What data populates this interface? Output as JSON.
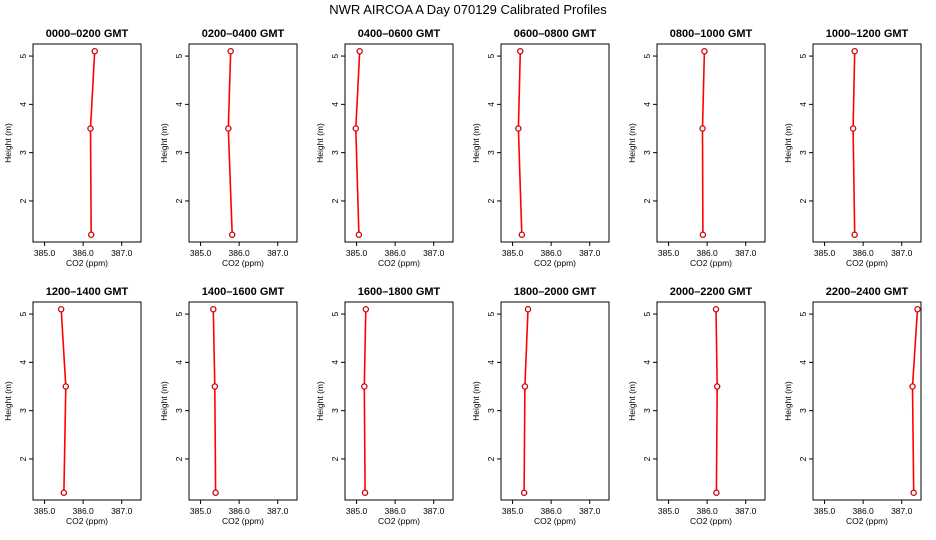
{
  "title": "NWR AIRCOA A  Day 070129  Calibrated Profiles",
  "colors": {
    "line": "#ff0000",
    "marker": "#cc0000",
    "axis": "#000000"
  },
  "chart_data": {
    "type": "line",
    "xlabel": "CO2 (ppm)",
    "ylabel": "Height (m)",
    "xlim": [
      384.7,
      387.5
    ],
    "ylim": [
      1.15,
      5.25
    ],
    "xticks": [
      385.0,
      386.0,
      387.0
    ],
    "xtick_labels": [
      "385.0",
      "386.0",
      "387.0"
    ],
    "yticks": [
      2,
      3,
      4,
      5
    ],
    "ytick_labels": [
      "2",
      "3",
      "4",
      "5"
    ],
    "heights": [
      1.3,
      3.5,
      5.1
    ],
    "panels": [
      {
        "title": "0000–0200 GMT",
        "values": [
          386.21,
          386.19,
          386.3
        ]
      },
      {
        "title": "0200–0400 GMT",
        "values": [
          385.82,
          385.72,
          385.78
        ]
      },
      {
        "title": "0400–0600 GMT",
        "values": [
          385.06,
          384.98,
          385.08
        ]
      },
      {
        "title": "0600–0800 GMT",
        "values": [
          385.24,
          385.15,
          385.2
        ]
      },
      {
        "title": "0800–1000 GMT",
        "values": [
          385.89,
          385.88,
          385.93
        ]
      },
      {
        "title": "1000–1200 GMT",
        "values": [
          385.78,
          385.74,
          385.78
        ]
      },
      {
        "title": "1200–1400 GMT",
        "values": [
          385.5,
          385.55,
          385.43
        ]
      },
      {
        "title": "1400–1600 GMT",
        "values": [
          385.39,
          385.37,
          385.33
        ]
      },
      {
        "title": "1600–1800 GMT",
        "values": [
          385.22,
          385.2,
          385.24
        ]
      },
      {
        "title": "1800–2000 GMT",
        "values": [
          385.3,
          385.32,
          385.4
        ]
      },
      {
        "title": "2000–2200 GMT",
        "values": [
          386.24,
          386.26,
          386.23
        ]
      },
      {
        "title": "2200–2400 GMT",
        "values": [
          387.31,
          387.28,
          387.41
        ]
      }
    ]
  }
}
